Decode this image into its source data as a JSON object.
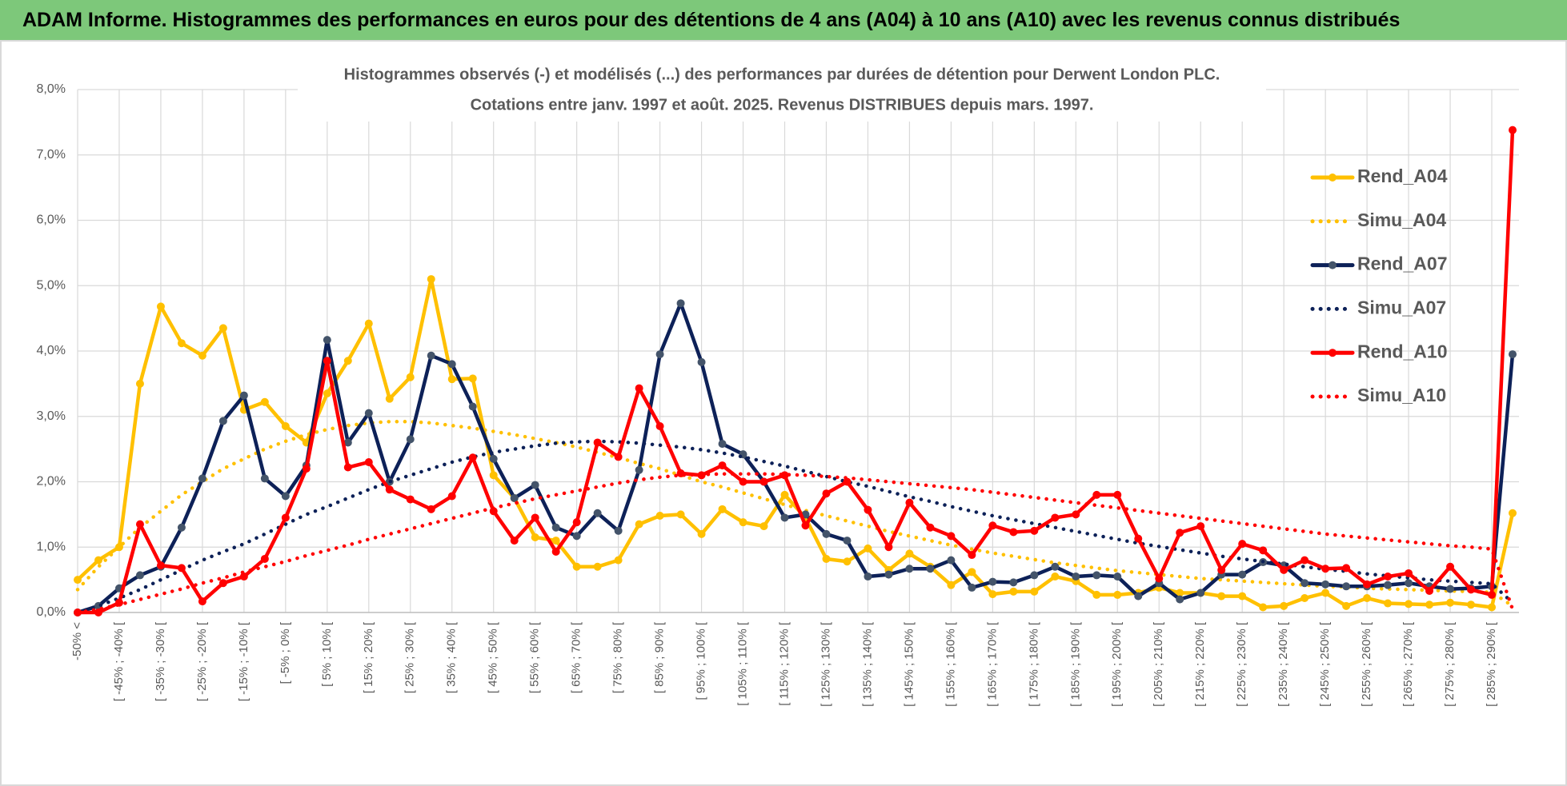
{
  "header": {
    "title": "ADAM Informe. Histogrammes des performances en euros pour des détentions de 4 ans (A04) à 10 ans (A10) avec les revenus connus distribués"
  },
  "chart_data": {
    "type": "line",
    "title": "Histogrammes observés (-) et modélisés (...) des performances par durées de détention pour Derwent London PLC.",
    "subtitle": "Cotations entre janv. 1997 et août. 2025. Revenus DISTRIBUES depuis mars. 1997.",
    "categories": [
      "-50% <",
      null,
      "[ -45% ; -40% [",
      null,
      "[ -35% ; -30% [",
      null,
      "[ -25% ; -20% [",
      null,
      "[ -15% ; -10% [",
      null,
      "[ -5% ; 0% [",
      null,
      "[ 5% ; 10% [",
      null,
      "[ 15% ; 20% [",
      null,
      "[ 25% ; 30% [",
      null,
      "[ 35% ; 40% [",
      null,
      "[ 45% ; 50% [",
      null,
      "[ 55% ; 60% [",
      null,
      "[ 65% ; 70% [",
      null,
      "[ 75% ; 80% [",
      null,
      "[ 85% ; 90% [",
      null,
      "[ 95% ; 100% [",
      null,
      "[ 105% ; 110% [",
      null,
      "[ 115% ; 120% [",
      null,
      "[ 125% ; 130% [",
      null,
      "[ 135% ; 140% [",
      null,
      "[ 145% ; 150% [",
      null,
      "[ 155% ; 160% [",
      null,
      "[ 165% ; 170% [",
      null,
      "[ 175% ; 180% [",
      null,
      "[ 185% ; 190% [",
      null,
      "[ 195% ; 200% [",
      null,
      "[ 205% ; 210% [",
      null,
      "[ 215% ; 220% [",
      null,
      "[ 225% ; 230% [",
      null,
      "[ 235% ; 240% [",
      null,
      "[ 245% ; 250% [",
      null,
      "[ 255% ; 260% [",
      null,
      "[ 265% ; 270% [",
      null,
      "[ 275% ; 280% [",
      null,
      "[ 285% ; 290% [",
      null
    ],
    "series": [
      {
        "name": "Rend_A04",
        "color": "#ffc000",
        "line_style": "solid",
        "markers": true,
        "values": [
          0.5,
          0.8,
          1.0,
          3.5,
          4.68,
          4.12,
          3.93,
          4.35,
          3.1,
          3.22,
          2.85,
          2.6,
          3.35,
          3.85,
          4.42,
          3.27,
          3.6,
          5.1,
          3.57,
          3.58,
          2.1,
          1.75,
          1.15,
          1.1,
          0.7,
          0.7,
          0.8,
          1.35,
          1.48,
          1.5,
          1.2,
          1.58,
          1.38,
          1.32,
          1.8,
          1.45,
          0.82,
          0.78,
          0.98,
          0.65,
          0.9,
          0.7,
          0.42,
          0.62,
          0.28,
          0.32,
          0.32,
          0.55,
          0.48,
          0.27,
          0.27,
          0.3,
          0.38,
          0.3,
          0.3,
          0.25,
          0.25,
          0.08,
          0.1,
          0.22,
          0.3,
          0.1,
          0.22,
          0.14,
          0.13,
          0.12,
          0.15,
          0.12,
          0.08,
          1.52
        ]
      },
      {
        "name": "Simu_A04",
        "color": "#ffc000",
        "line_style": "dotted",
        "markers": false,
        "values": [
          0.35,
          0.7,
          1.0,
          1.3,
          1.55,
          1.8,
          2.0,
          2.2,
          2.35,
          2.5,
          2.62,
          2.72,
          2.8,
          2.86,
          2.9,
          2.92,
          2.92,
          2.9,
          2.86,
          2.82,
          2.77,
          2.72,
          2.66,
          2.6,
          2.53,
          2.45,
          2.37,
          2.28,
          2.2,
          2.1,
          2.0,
          1.92,
          1.83,
          1.74,
          1.65,
          1.56,
          1.48,
          1.4,
          1.32,
          1.24,
          1.17,
          1.1,
          1.03,
          0.97,
          0.91,
          0.86,
          0.81,
          0.76,
          0.72,
          0.68,
          0.64,
          0.61,
          0.58,
          0.55,
          0.52,
          0.5,
          0.48,
          0.46,
          0.44,
          0.42,
          0.4,
          0.39,
          0.37,
          0.36,
          0.35,
          0.34,
          0.33,
          0.32,
          0.31,
          0.1
        ]
      },
      {
        "name": "Rend_A07",
        "color": "#0d2158",
        "marker_color": "#44546a",
        "line_style": "solid",
        "markers": true,
        "values": [
          0.0,
          0.1,
          0.37,
          0.57,
          0.7,
          1.3,
          2.05,
          2.93,
          3.32,
          2.05,
          1.78,
          2.25,
          4.17,
          2.6,
          3.05,
          2.0,
          2.65,
          3.93,
          3.8,
          3.15,
          2.35,
          1.75,
          1.95,
          1.3,
          1.17,
          1.52,
          1.25,
          2.18,
          3.95,
          4.73,
          3.83,
          2.58,
          2.42,
          2.0,
          1.45,
          1.5,
          1.2,
          1.1,
          0.55,
          0.58,
          0.67,
          0.67,
          0.8,
          0.38,
          0.47,
          0.46,
          0.57,
          0.7,
          0.55,
          0.57,
          0.55,
          0.25,
          0.45,
          0.2,
          0.3,
          0.58,
          0.58,
          0.77,
          0.72,
          0.45,
          0.43,
          0.4,
          0.4,
          0.42,
          0.45,
          0.4,
          0.36,
          0.37,
          0.4,
          3.95
        ]
      },
      {
        "name": "Simu_A07",
        "color": "#0d2158",
        "line_style": "dotted",
        "markers": false,
        "values": [
          0.0,
          0.1,
          0.22,
          0.35,
          0.5,
          0.65,
          0.8,
          0.93,
          1.05,
          1.2,
          1.35,
          1.5,
          1.62,
          1.75,
          1.88,
          2.0,
          2.1,
          2.2,
          2.3,
          2.38,
          2.45,
          2.5,
          2.55,
          2.59,
          2.61,
          2.62,
          2.61,
          2.59,
          2.56,
          2.53,
          2.49,
          2.44,
          2.38,
          2.31,
          2.24,
          2.16,
          2.08,
          2.0,
          1.93,
          1.85,
          1.77,
          1.7,
          1.62,
          1.55,
          1.48,
          1.42,
          1.36,
          1.3,
          1.24,
          1.18,
          1.12,
          1.06,
          1.01,
          0.96,
          0.91,
          0.86,
          0.82,
          0.78,
          0.74,
          0.7,
          0.66,
          0.63,
          0.59,
          0.56,
          0.53,
          0.5,
          0.48,
          0.46,
          0.44,
          0.15
        ]
      },
      {
        "name": "Rend_A10",
        "color": "#ff0000",
        "line_style": "solid",
        "markers": true,
        "values": [
          0.0,
          0.0,
          0.15,
          1.35,
          0.72,
          0.68,
          0.17,
          0.45,
          0.55,
          0.82,
          1.45,
          2.2,
          3.85,
          2.22,
          2.3,
          1.88,
          1.73,
          1.58,
          1.78,
          2.37,
          1.55,
          1.1,
          1.45,
          0.93,
          1.38,
          2.6,
          2.38,
          3.43,
          2.85,
          2.13,
          2.1,
          2.25,
          2.0,
          2.0,
          2.1,
          1.33,
          1.82,
          2.0,
          1.57,
          1.0,
          1.68,
          1.3,
          1.17,
          0.88,
          1.33,
          1.23,
          1.25,
          1.45,
          1.5,
          1.8,
          1.8,
          1.13,
          0.52,
          1.22,
          1.32,
          0.65,
          1.05,
          0.95,
          0.65,
          0.8,
          0.67,
          0.68,
          0.43,
          0.55,
          0.6,
          0.33,
          0.7,
          0.35,
          0.27,
          7.38
        ]
      },
      {
        "name": "Simu_A10",
        "color": "#ff0000",
        "line_style": "dotted",
        "markers": false,
        "values": [
          0.0,
          0.05,
          0.12,
          0.2,
          0.28,
          0.36,
          0.45,
          0.53,
          0.62,
          0.7,
          0.78,
          0.87,
          0.95,
          1.03,
          1.12,
          1.2,
          1.28,
          1.36,
          1.44,
          1.52,
          1.6,
          1.67,
          1.74,
          1.8,
          1.86,
          1.92,
          1.98,
          2.03,
          2.07,
          2.1,
          2.11,
          2.12,
          2.12,
          2.12,
          2.11,
          2.1,
          2.08,
          2.06,
          2.03,
          2.0,
          1.97,
          1.94,
          1.91,
          1.88,
          1.84,
          1.8,
          1.76,
          1.72,
          1.68,
          1.64,
          1.6,
          1.56,
          1.52,
          1.48,
          1.44,
          1.4,
          1.36,
          1.32,
          1.28,
          1.24,
          1.2,
          1.17,
          1.14,
          1.11,
          1.08,
          1.05,
          1.02,
          1.0,
          0.97,
          0.05
        ]
      }
    ],
    "ylim": [
      0,
      8
    ],
    "yticks": [
      {
        "value": 0,
        "label": "0,0%"
      },
      {
        "value": 1,
        "label": "1,0%"
      },
      {
        "value": 2,
        "label": "2,0%"
      },
      {
        "value": 3,
        "label": "3,0%"
      },
      {
        "value": 4,
        "label": "4,0%"
      },
      {
        "value": 5,
        "label": "5,0%"
      },
      {
        "value": 6,
        "label": "6,0%"
      },
      {
        "value": 7,
        "label": "7,0%"
      },
      {
        "value": 8,
        "label": "8,0%"
      }
    ],
    "grid": true,
    "legend": "right"
  }
}
